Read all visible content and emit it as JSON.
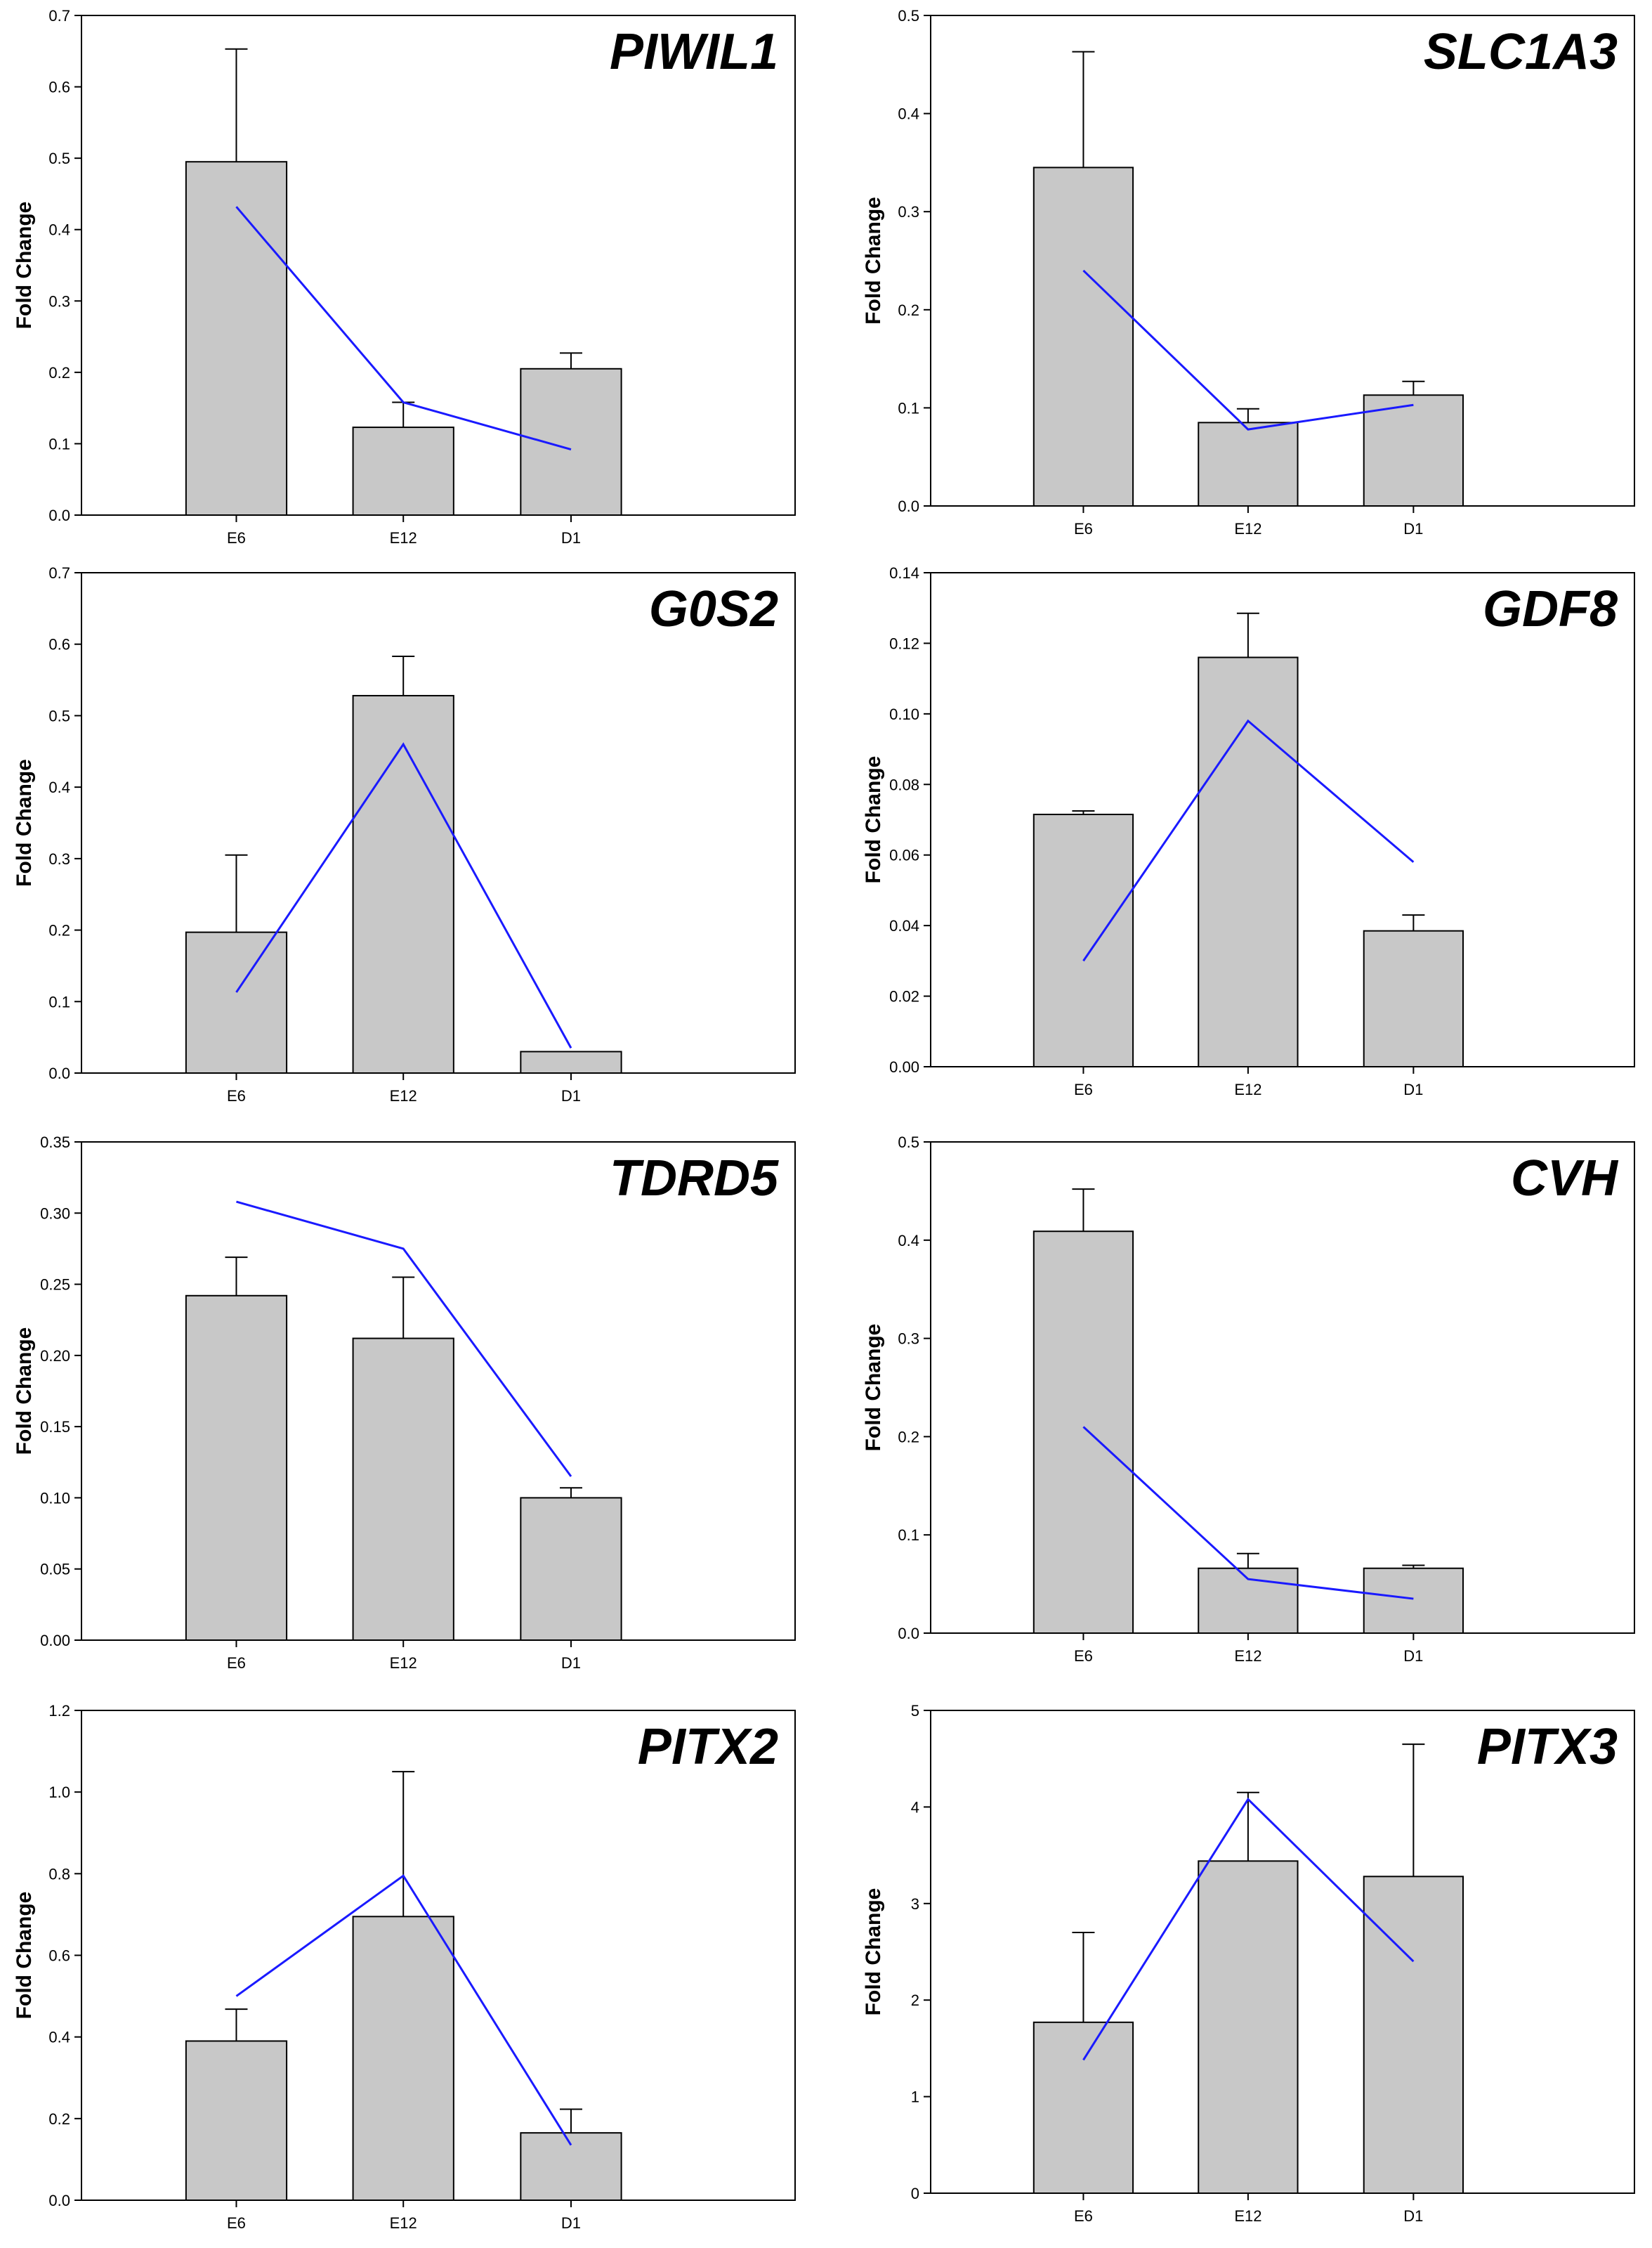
{
  "figure_title": "",
  "chart_data": [
    {
      "type": "bar",
      "title": "PIWIL1",
      "xlabel": "",
      "ylabel": "Fold Change",
      "ylim": [
        0,
        0.7
      ],
      "yticks": [
        "0.0",
        "0.1",
        "0.2",
        "0.3",
        "0.4",
        "0.5",
        "0.6",
        "0.7"
      ],
      "categories": [
        "E6",
        "E12",
        "D1"
      ],
      "series": [
        {
          "name": "bar",
          "values": [
            0.495,
            0.123,
            0.205
          ],
          "errors": [
            0.158,
            0.035,
            0.022
          ]
        },
        {
          "name": "line",
          "values": [
            0.432,
            0.158,
            0.092
          ]
        }
      ]
    },
    {
      "type": "bar",
      "title": "SLC1A3",
      "xlabel": "",
      "ylabel": "Fold Change",
      "ylim": [
        0,
        0.5
      ],
      "yticks": [
        "0.0",
        "0.1",
        "0.2",
        "0.3",
        "0.4",
        "0.5"
      ],
      "categories": [
        "E6",
        "E12",
        "D1"
      ],
      "series": [
        {
          "name": "bar",
          "values": [
            0.345,
            0.085,
            0.113
          ],
          "errors": [
            0.118,
            0.014,
            0.014
          ]
        },
        {
          "name": "line",
          "values": [
            0.24,
            0.078,
            0.103
          ]
        }
      ]
    },
    {
      "type": "bar",
      "title": "G0S2",
      "xlabel": "",
      "ylabel": "Fold Change",
      "ylim": [
        0,
        0.7
      ],
      "yticks": [
        "0.0",
        "0.1",
        "0.2",
        "0.3",
        "0.4",
        "0.5",
        "0.6",
        "0.7"
      ],
      "categories": [
        "E6",
        "E12",
        "D1"
      ],
      "series": [
        {
          "name": "bar",
          "values": [
            0.197,
            0.528,
            0.03
          ],
          "errors": [
            0.108,
            0.055,
            0.0
          ]
        },
        {
          "name": "line",
          "values": [
            0.113,
            0.46,
            0.035
          ]
        }
      ]
    },
    {
      "type": "bar",
      "title": "GDF8",
      "xlabel": "",
      "ylabel": "Fold Change",
      "ylim": [
        0,
        0.14
      ],
      "yticks": [
        "0.00",
        "0.02",
        "0.04",
        "0.06",
        "0.08",
        "0.10",
        "0.12",
        "0.14"
      ],
      "categories": [
        "E6",
        "E12",
        "D1"
      ],
      "series": [
        {
          "name": "bar",
          "values": [
            0.0715,
            0.116,
            0.0385
          ],
          "errors": [
            0.001,
            0.0125,
            0.0045
          ]
        },
        {
          "name": "line",
          "values": [
            0.03,
            0.098,
            0.058
          ]
        }
      ]
    },
    {
      "type": "bar",
      "title": "TDRD5",
      "xlabel": "",
      "ylabel": "Fold Change",
      "ylim": [
        0,
        0.35
      ],
      "yticks": [
        "0.00",
        "0.05",
        "0.10",
        "0.15",
        "0.20",
        "0.25",
        "0.30",
        "0.35"
      ],
      "categories": [
        "E6",
        "E12",
        "D1"
      ],
      "series": [
        {
          "name": "bar",
          "values": [
            0.242,
            0.212,
            0.1
          ],
          "errors": [
            0.027,
            0.043,
            0.007
          ]
        },
        {
          "name": "line",
          "values": [
            0.308,
            0.275,
            0.115
          ]
        }
      ]
    },
    {
      "type": "bar",
      "title": "CVH",
      "xlabel": "",
      "ylabel": "Fold Change",
      "ylim": [
        0,
        0.5
      ],
      "yticks": [
        "0.0",
        "0.1",
        "0.2",
        "0.3",
        "0.4",
        "0.5"
      ],
      "categories": [
        "E6",
        "E12",
        "D1"
      ],
      "series": [
        {
          "name": "bar",
          "values": [
            0.409,
            0.066,
            0.066
          ],
          "errors": [
            0.043,
            0.015,
            0.003
          ]
        },
        {
          "name": "line",
          "values": [
            0.21,
            0.055,
            0.035
          ]
        }
      ]
    },
    {
      "type": "bar",
      "title": "PITX2",
      "xlabel": "",
      "ylabel": "Fold Change",
      "ylim": [
        0,
        1.2
      ],
      "yticks": [
        "0.0",
        "0.2",
        "0.4",
        "0.6",
        "0.8",
        "1.0",
        "1.2"
      ],
      "categories": [
        "E6",
        "E12",
        "D1"
      ],
      "series": [
        {
          "name": "bar",
          "values": [
            0.39,
            0.695,
            0.165
          ],
          "errors": [
            0.078,
            0.355,
            0.058
          ]
        },
        {
          "name": "line",
          "values": [
            0.5,
            0.795,
            0.135
          ]
        }
      ]
    },
    {
      "type": "bar",
      "title": "PITX3",
      "xlabel": "",
      "ylabel": "Fold Change",
      "ylim": [
        0,
        5
      ],
      "yticks": [
        "0",
        "1",
        "2",
        "3",
        "4",
        "5"
      ],
      "categories": [
        "E6",
        "E12",
        "D1"
      ],
      "series": [
        {
          "name": "bar",
          "values": [
            1.77,
            3.44,
            3.28
          ],
          "errors": [
            0.93,
            0.71,
            1.37
          ]
        },
        {
          "name": "line",
          "values": [
            1.38,
            4.08,
            2.4
          ]
        }
      ]
    }
  ]
}
